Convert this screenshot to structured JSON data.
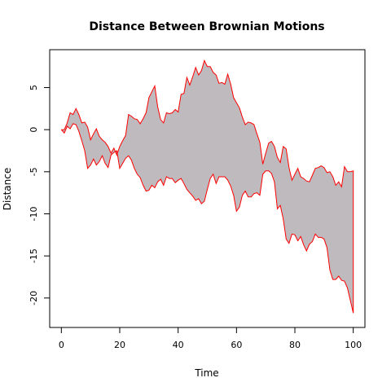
{
  "chart_data": {
    "type": "area",
    "title": "Distance Between Brownian Motions",
    "xlabel": "Time",
    "ylabel": "Distance",
    "xlim": [
      -4,
      104
    ],
    "ylim": [
      -23.5,
      9.5
    ],
    "xticks": [
      0,
      20,
      40,
      60,
      80,
      100
    ],
    "yticks": [
      -20,
      -15,
      -10,
      -5,
      0,
      5
    ],
    "fill_color": "#bebabe",
    "line_color": "#ff0000",
    "upper": {
      "x": [
        0,
        1,
        2,
        3,
        4,
        5,
        6,
        7,
        8,
        9,
        10,
        11,
        12,
        13,
        14,
        15,
        16,
        17,
        18,
        19,
        20,
        21,
        22,
        23,
        24,
        25,
        26,
        27,
        28,
        29,
        30,
        31,
        32,
        33,
        34,
        35,
        36,
        37,
        38,
        39,
        40,
        41,
        42,
        43,
        44,
        45,
        46,
        47,
        48,
        49,
        50,
        51,
        52,
        53,
        54,
        55,
        56,
        57,
        58,
        59,
        60,
        61,
        62,
        63,
        64,
        65,
        66,
        67,
        68,
        69,
        70,
        71,
        72,
        73,
        74,
        75,
        76,
        77,
        78,
        79,
        80,
        81,
        82,
        83,
        84,
        85,
        86,
        87,
        88,
        89,
        90,
        91,
        92,
        93,
        94,
        95,
        96,
        97,
        98,
        99,
        100
      ],
      "y": [
        0.0,
        0.0,
        0.8,
        2.0,
        1.8,
        2.5,
        1.8,
        0.8,
        0.9,
        0.3,
        -1.2,
        -0.5,
        0.1,
        -0.8,
        -1.2,
        -1.5,
        -2.0,
        -2.8,
        -2.2,
        -3.0,
        -2.0,
        -1.3,
        -0.7,
        1.8,
        1.6,
        1.3,
        1.2,
        0.7,
        1.3,
        2.0,
        3.8,
        4.5,
        5.2,
        2.7,
        1.2,
        0.8,
        2.0,
        1.9,
        2.0,
        2.4,
        2.1,
        4.2,
        4.3,
        6.2,
        5.3,
        6.3,
        7.4,
        6.5,
        7.0,
        8.2,
        7.5,
        7.5,
        6.8,
        6.5,
        5.5,
        5.6,
        5.4,
        6.6,
        5.4,
        3.8,
        3.2,
        2.6,
        1.5,
        0.6,
        0.9,
        0.8,
        0.6,
        -0.5,
        -1.5,
        -4.1,
        -2.8,
        -1.6,
        -1.4,
        -2.0,
        -3.3,
        -3.9,
        -2.0,
        -2.3,
        -4.5,
        -6.0,
        -5.3,
        -4.6,
        -5.6,
        -5.8,
        -6.1,
        -6.2,
        -5.4,
        -4.6,
        -4.5,
        -4.3,
        -4.5,
        -5.1,
        -5.0,
        -5.6,
        -6.6,
        -6.2,
        -6.8,
        -4.4,
        -5.0,
        -5.0,
        -4.9
      ]
    },
    "lower": {
      "x": [
        0,
        1,
        2,
        3,
        4,
        5,
        6,
        7,
        8,
        9,
        10,
        11,
        12,
        13,
        14,
        15,
        16,
        17,
        18,
        19,
        20,
        21,
        22,
        23,
        24,
        25,
        26,
        27,
        28,
        29,
        30,
        31,
        32,
        33,
        34,
        35,
        36,
        37,
        38,
        39,
        40,
        41,
        42,
        43,
        44,
        45,
        46,
        47,
        48,
        49,
        50,
        51,
        52,
        53,
        54,
        55,
        56,
        57,
        58,
        59,
        60,
        61,
        62,
        63,
        64,
        65,
        66,
        67,
        68,
        69,
        70,
        71,
        72,
        73,
        74,
        75,
        76,
        77,
        78,
        79,
        80,
        81,
        82,
        83,
        84,
        85,
        86,
        87,
        88,
        89,
        90,
        91,
        92,
        93,
        94,
        95,
        96,
        97,
        98,
        99,
        100
      ],
      "y": [
        0.0,
        -0.4,
        0.4,
        0.1,
        0.7,
        0.6,
        -0.2,
        -1.3,
        -2.5,
        -4.6,
        -4.2,
        -3.5,
        -4.2,
        -3.8,
        -3.1,
        -4.0,
        -4.5,
        -3.0,
        -2.7,
        -2.5,
        -4.6,
        -4.0,
        -3.4,
        -3.1,
        -3.6,
        -4.6,
        -5.3,
        -5.7,
        -6.6,
        -7.3,
        -7.2,
        -6.6,
        -6.9,
        -6.2,
        -5.9,
        -6.6,
        -5.6,
        -5.8,
        -5.8,
        -6.3,
        -6.0,
        -5.8,
        -6.4,
        -7.1,
        -7.5,
        -7.9,
        -8.4,
        -8.2,
        -8.8,
        -8.5,
        -7.1,
        -5.8,
        -5.3,
        -6.4,
        -5.6,
        -5.6,
        -5.6,
        -6.0,
        -6.7,
        -7.8,
        -9.7,
        -9.2,
        -7.8,
        -7.3,
        -8.0,
        -8.0,
        -7.6,
        -7.5,
        -7.8,
        -5.3,
        -4.9,
        -4.9,
        -5.2,
        -6.2,
        -9.4,
        -9.0,
        -10.6,
        -13.0,
        -13.5,
        -12.4,
        -12.5,
        -13.2,
        -12.7,
        -13.7,
        -14.4,
        -13.6,
        -13.3,
        -12.4,
        -12.8,
        -12.8,
        -13.0,
        -14.0,
        -16.7,
        -17.8,
        -17.8,
        -17.4,
        -17.9,
        -18.0,
        -18.8,
        -20.3,
        -21.8
      ]
    }
  }
}
